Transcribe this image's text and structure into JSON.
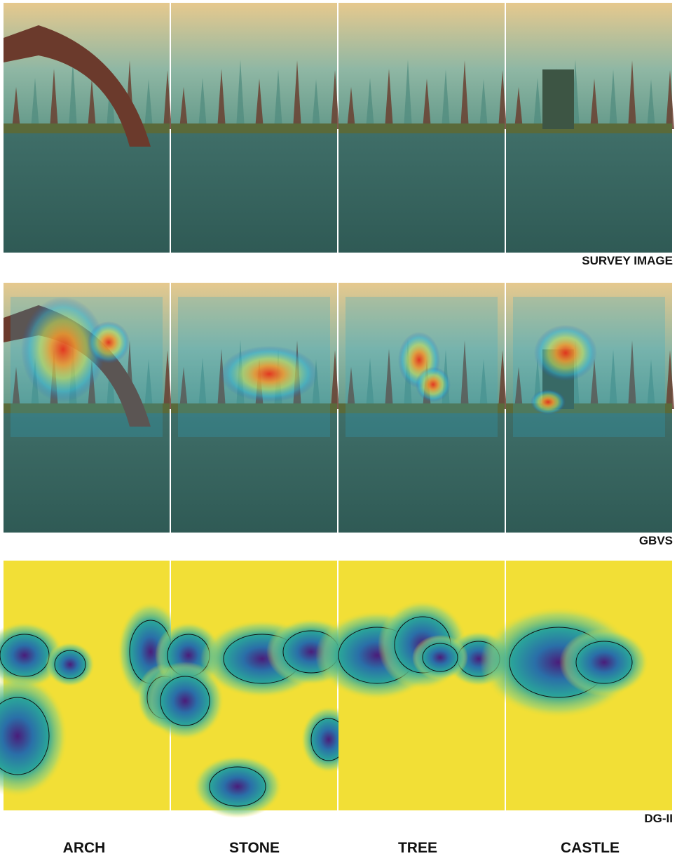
{
  "rows": [
    {
      "label": "SURVEY IMAGE"
    },
    {
      "label": "GBVS"
    },
    {
      "label": "DG-II"
    }
  ],
  "columns": [
    "ARCH",
    "STONE",
    "TREE",
    "CASTLE"
  ]
}
